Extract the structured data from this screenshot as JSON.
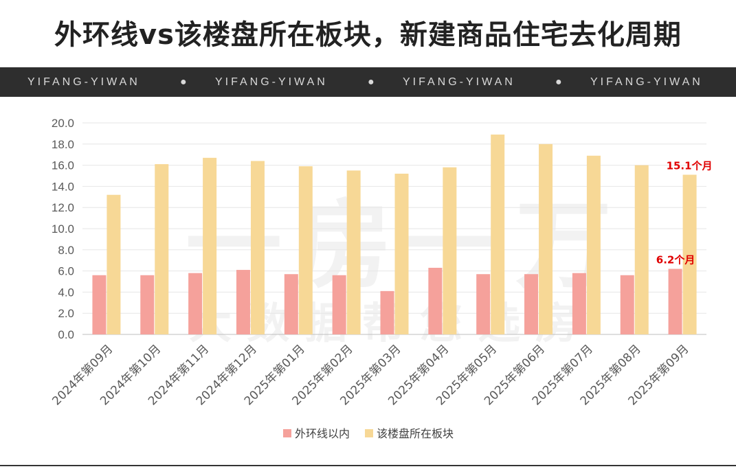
{
  "title": "外环线vs该楼盘所在板块，新建商品住宅去化周期",
  "banner": {
    "items": [
      "YIFANG-YIWAN",
      "YIFANG-YIWAN",
      "YIFANG-YIWAN",
      "YIFANG-YIWAN"
    ],
    "separator": "●"
  },
  "watermark": {
    "line1": "一房一万",
    "line2": "大数据帮您选房"
  },
  "colors": {
    "series1": "#f5a19b",
    "series2": "#f7d896",
    "annotation": "#e00000",
    "banner_bg": "#2e2e2e"
  },
  "chart_data": {
    "type": "bar",
    "categories": [
      "2024年第09月",
      "2024年第10月",
      "2024年第11月",
      "2024年第12月",
      "2025年第01月",
      "2025年第02月",
      "2025年第03月",
      "2025年第04月",
      "2025年第05月",
      "2025年第06月",
      "2025年第07月",
      "2025年第08月",
      "2025年第09月"
    ],
    "series": [
      {
        "name": "外环线以内",
        "values": [
          5.6,
          5.6,
          5.8,
          6.1,
          5.7,
          5.6,
          4.1,
          6.3,
          5.7,
          5.7,
          5.8,
          5.6,
          6.2
        ]
      },
      {
        "name": "该楼盘所在板块",
        "values": [
          13.2,
          16.1,
          16.7,
          16.4,
          15.9,
          15.5,
          15.2,
          15.8,
          18.9,
          18.0,
          16.9,
          16.0,
          15.1
        ]
      }
    ],
    "ylim": [
      0,
      20
    ],
    "yticks": [
      "0.0",
      "2.0",
      "4.0",
      "6.0",
      "8.0",
      "10.0",
      "12.0",
      "14.0",
      "16.0",
      "18.0",
      "20.0"
    ],
    "grid": true,
    "legend_position": "bottom",
    "annotations": [
      {
        "series": "外环线以内",
        "category": "2025年第09月",
        "text": "6.2个月"
      },
      {
        "series": "该楼盘所在板块",
        "category": "2025年第09月",
        "text": "15.1个月"
      }
    ]
  }
}
